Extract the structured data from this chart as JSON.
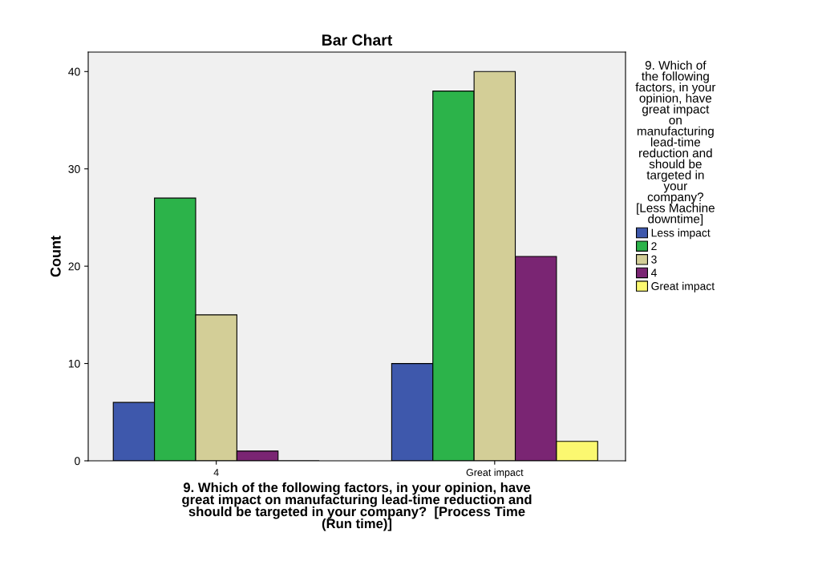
{
  "chart_data": {
    "type": "bar",
    "title": "Bar Chart",
    "xlabel": "9. Which of the following factors, in your opinion, have\ngreat impact on manufacturing lead-time reduction and\nshould be targeted in your company?  [Process Time\n(Run time)]",
    "ylabel": "Count",
    "legend_title": "9. Which of\nthe following\nfactors, in your\nopinion, have\ngreat impact\non\nmanufacturing\nlead-time\nreduction and\nshould be\ntargeted in\nyour\ncompany?\n[Less Machine\ndowntime]",
    "categories": [
      "4",
      "Great impact"
    ],
    "series": [
      {
        "name": "Less impact",
        "color": "#3e58ac",
        "values": [
          6,
          10
        ]
      },
      {
        "name": "2",
        "color": "#2cb34a",
        "values": [
          27,
          38
        ]
      },
      {
        "name": "3",
        "color": "#d3ce97",
        "values": [
          15,
          40
        ]
      },
      {
        "name": "4",
        "color": "#7a2573",
        "values": [
          1,
          21
        ]
      },
      {
        "name": "Great impact",
        "color": "#fbf870",
        "values": [
          0,
          2
        ]
      }
    ],
    "ylim": [
      0,
      42
    ],
    "yticks": [
      0,
      10,
      20,
      30,
      40
    ],
    "grid": false,
    "legend": "right"
  }
}
